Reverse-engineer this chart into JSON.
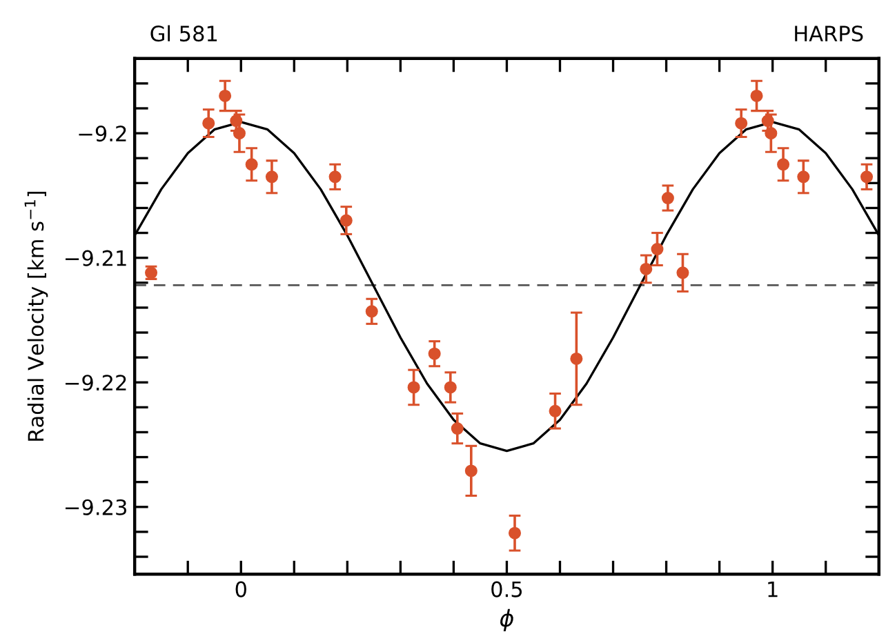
{
  "chart_data": {
    "type": "scatter",
    "xlabel": "ϕ",
    "ylabel": "Radial Velocity [km s$^{−1}$]",
    "annotations": [
      "Gl 581",
      "HARPS"
    ],
    "xlim": [
      -0.2,
      1.2
    ],
    "ylim": [
      -9.2354,
      -9.194
    ],
    "xticks": [
      {
        "value": -0.1,
        "label": null
      },
      0,
      {
        "value": 0.1,
        "label": null
      },
      {
        "value": 0.2,
        "label": null
      },
      {
        "value": 0.3,
        "label": null
      },
      {
        "value": 0.4,
        "label": null
      },
      0.5,
      {
        "value": 0.6,
        "label": null
      },
      {
        "value": 0.7,
        "label": null
      },
      {
        "value": 0.8,
        "label": null
      },
      {
        "value": 0.9,
        "label": null
      },
      1,
      {
        "value": 1.1,
        "label": null
      }
    ],
    "yticks": [
      {
        "value": -9.194,
        "label": null
      },
      {
        "value": -9.196,
        "label": null
      },
      {
        "value": -9.198,
        "label": null
      },
      {
        "value": -9.2,
        "label": "−9.2"
      },
      {
        "value": -9.202,
        "label": null
      },
      {
        "value": -9.204,
        "label": null
      },
      {
        "value": -9.206,
        "label": null
      },
      {
        "value": -9.208,
        "label": null
      },
      {
        "value": -9.21,
        "label": "−9.21"
      },
      {
        "value": -9.212,
        "label": null
      },
      {
        "value": -9.214,
        "label": null
      },
      {
        "value": -9.216,
        "label": null
      },
      {
        "value": -9.218,
        "label": null
      },
      {
        "value": -9.22,
        "label": "−9.22"
      },
      {
        "value": -9.222,
        "label": null
      },
      {
        "value": -9.224,
        "label": null
      },
      {
        "value": -9.226,
        "label": null
      },
      {
        "value": -9.228,
        "label": null
      },
      {
        "value": -9.23,
        "label": "−9.23"
      },
      {
        "value": -9.232,
        "label": null
      },
      {
        "value": -9.234,
        "label": null
      }
    ],
    "ref_lines": [
      {
        "axis": "y",
        "value": -9.2122,
        "color": "#555555",
        "line_style": "dashed"
      }
    ],
    "grid": false,
    "legend": false,
    "series": [
      {
        "color": "#d9512b",
        "marker": "circle",
        "x": [
          -0.169,
          -0.061,
          -0.03,
          -0.009,
          -0.003,
          0.02,
          0.058,
          0.177,
          0.198,
          0.246,
          0.325,
          0.364,
          0.394,
          0.407,
          0.433,
          0.515,
          0.591,
          0.631,
          0.762,
          0.783,
          0.803,
          0.831,
          0.941,
          0.97,
          0.991,
          0.997,
          1.02,
          1.058,
          1.177
        ],
        "values": [
          -9.2112,
          -9.1992,
          -9.197,
          -9.199,
          -9.2,
          -9.2025,
          -9.2035,
          -9.2035,
          -9.207,
          -9.2143,
          -9.2204,
          -9.2177,
          -9.2204,
          -9.2237,
          -9.2271,
          -9.2321,
          -9.2223,
          -9.2181,
          -9.2109,
          -9.2093,
          -9.2052,
          -9.2112,
          -9.1992,
          -9.197,
          -9.199,
          -9.2,
          -9.2025,
          -9.2035,
          -9.2035
        ],
        "errors": [
          0.0005,
          0.0011,
          0.0012,
          0.0008,
          0.0015,
          0.0013,
          0.0013,
          0.001,
          0.0011,
          0.001,
          0.0014,
          0.001,
          0.0012,
          0.0012,
          0.002,
          0.0014,
          0.0014,
          0.0037,
          0.0011,
          0.0013,
          0.001,
          0.0015,
          0.0011,
          0.0012,
          0.0008,
          0.0015,
          0.0013,
          0.0013,
          0.001
        ]
      },
      {
        "type": "line",
        "color": "#000000",
        "marker": "none",
        "line_style": "solid",
        "x": [
          -0.2,
          -0.15,
          -0.1,
          -0.05,
          0,
          0.05,
          0.1,
          0.15,
          0.2,
          0.25,
          0.3,
          0.35,
          0.4,
          0.45,
          0.5,
          0.55,
          0.6,
          0.65,
          0.7,
          0.75,
          0.8,
          0.85,
          0.9,
          0.95,
          1.0,
          1.05,
          1.1,
          1.15,
          1.2
        ],
        "values": [
          -9.2082,
          -9.2045,
          -9.2016,
          -9.1997,
          -9.1991,
          -9.1997,
          -9.2016,
          -9.2045,
          -9.2082,
          -9.2123,
          -9.2164,
          -9.2201,
          -9.223,
          -9.2249,
          -9.2255,
          -9.2249,
          -9.223,
          -9.2201,
          -9.2164,
          -9.2123,
          -9.2082,
          -9.2045,
          -9.2016,
          -9.1997,
          -9.1991,
          -9.1997,
          -9.2016,
          -9.2045,
          -9.2082
        ]
      }
    ]
  }
}
